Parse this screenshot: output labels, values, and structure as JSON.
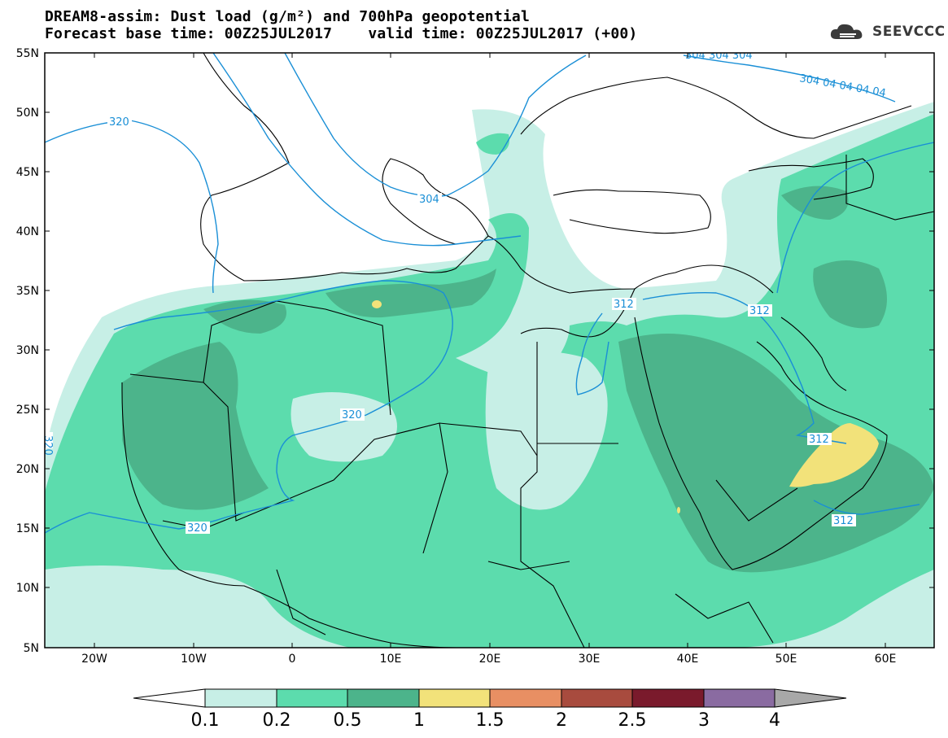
{
  "header": {
    "title_line1": "DREAM8-assim: Dust load (g/m²) and 700hPa geopotential",
    "title_line2": "Forecast base time: 00Z25JUL2017    valid time: 00Z25JUL2017 (+00)",
    "logo_text": "SEEVCCC"
  },
  "map": {
    "lat_labels": [
      "55N",
      "50N",
      "45N",
      "40N",
      "35N",
      "30N",
      "25N",
      "20N",
      "15N",
      "10N",
      "5N"
    ],
    "lon_labels": [
      "20W",
      "10W",
      "0",
      "10E",
      "20E",
      "30E",
      "40E",
      "50E",
      "60E"
    ],
    "contour_labels": [
      "320",
      "320",
      "320",
      "320",
      "304",
      "312",
      "312",
      "312",
      "312",
      "304 304 304",
      "304 04 04 04 04"
    ],
    "colors": {
      "land": "#ffffff",
      "border": "#000000",
      "contour": "#1a8fd6",
      "frame": "#000000"
    }
  },
  "colorbar": {
    "labels": [
      "0.1",
      "0.2",
      "0.5",
      "1",
      "1.5",
      "2",
      "2.5",
      "3",
      "4"
    ],
    "colors": [
      "#c7efe6",
      "#5cdcad",
      "#4cb48b",
      "#f2e27a",
      "#e88f63",
      "#a84b3e",
      "#7a1a2c",
      "#8a6ba1",
      "#a8a8a8"
    ],
    "under_color": "#ffffff"
  }
}
